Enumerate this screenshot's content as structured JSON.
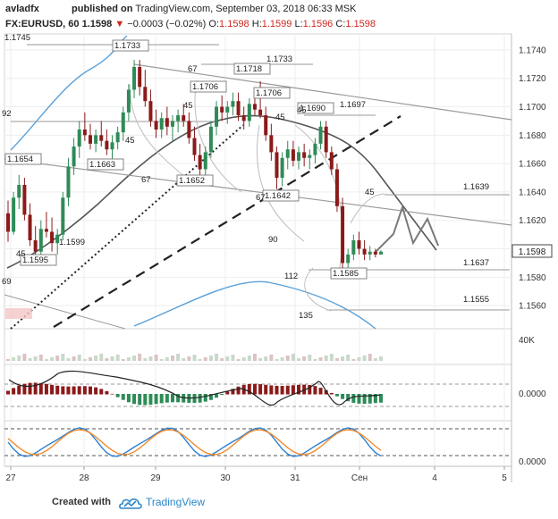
{
  "header": {
    "author": "avladfx",
    "published_label": "published on",
    "site": "TradingView.com,",
    "datetime": "September 03, 2018 06:33 MSK",
    "symbol": "FX:EURUSD, 60",
    "last": "1.1598",
    "change": "−0.0003 (−0.02%)",
    "o_label": "O:",
    "o_val": "1.1598",
    "h_label": "H:",
    "h_val": "1.1599",
    "l_label": "L:",
    "l_val": "1.1596",
    "c_label": "C:",
    "c_val": "1.1598"
  },
  "footer": {
    "created_with": "Created with",
    "brand": "TradingView"
  },
  "colors": {
    "up": "#2e8b57",
    "down": "#8b1a1a",
    "axis_text": "#333333",
    "grid": "#eeeeee",
    "last_price_box": "#ffffff",
    "stoch_blue": "#2a7fd4",
    "stoch_orange": "#f28b2c",
    "bb_blue": "#5aa0d8",
    "ma_dark": "#555555",
    "trend_gray": "#9a9a9a"
  },
  "chart_data": [
    {
      "id": "price",
      "type": "candlestick",
      "x_labels": [
        "27",
        "28",
        "29",
        "30",
        "31",
        "Сен",
        "4",
        "5"
      ],
      "y_ticks": [
        1.156,
        1.158,
        1.16,
        1.162,
        1.164,
        1.166,
        1.168,
        1.17,
        1.172,
        1.174
      ],
      "y_range": [
        1.1545,
        1.175
      ],
      "last_price": 1.1598,
      "grid": true,
      "candles": [
        [
          1.1625,
          1.1634,
          1.1605,
          1.1612
        ],
        [
          1.1612,
          1.164,
          1.161,
          1.1636
        ],
        [
          1.1636,
          1.1652,
          1.1628,
          1.1645
        ],
        [
          1.1645,
          1.165,
          1.162,
          1.1624
        ],
        [
          1.1624,
          1.1632,
          1.1602,
          1.1606
        ],
        [
          1.1606,
          1.1616,
          1.1594,
          1.1598
        ],
        [
          1.1598,
          1.162,
          1.1596,
          1.1614
        ],
        [
          1.1614,
          1.1626,
          1.1608,
          1.1612
        ],
        [
          1.1612,
          1.1622,
          1.1598,
          1.1604
        ],
        [
          1.1604,
          1.1614,
          1.1596,
          1.161
        ],
        [
          1.161,
          1.164,
          1.1606,
          1.1636
        ],
        [
          1.1636,
          1.1664,
          1.163,
          1.1658
        ],
        [
          1.1658,
          1.1678,
          1.1652,
          1.1672
        ],
        [
          1.1672,
          1.169,
          1.1664,
          1.1684
        ],
        [
          1.1684,
          1.1696,
          1.1676,
          1.168
        ],
        [
          1.168,
          1.1688,
          1.167,
          1.1674
        ],
        [
          1.1674,
          1.1684,
          1.1668,
          1.168
        ],
        [
          1.168,
          1.169,
          1.1672,
          1.1676
        ],
        [
          1.1676,
          1.1684,
          1.1666,
          1.167
        ],
        [
          1.167,
          1.168,
          1.1662,
          1.1675
        ],
        [
          1.1675,
          1.1686,
          1.167,
          1.1682
        ],
        [
          1.1682,
          1.17,
          1.1676,
          1.1696
        ],
        [
          1.1696,
          1.1716,
          1.169,
          1.1712
        ],
        [
          1.1712,
          1.1733,
          1.1706,
          1.1728
        ],
        [
          1.1728,
          1.1733,
          1.1708,
          1.1714
        ],
        [
          1.1714,
          1.1726,
          1.17,
          1.1704
        ],
        [
          1.1704,
          1.1712,
          1.1686,
          1.169
        ],
        [
          1.169,
          1.1698,
          1.1678,
          1.1684
        ],
        [
          1.1684,
          1.1696,
          1.1678,
          1.1692
        ],
        [
          1.1692,
          1.17,
          1.168,
          1.1686
        ],
        [
          1.1686,
          1.1694,
          1.1676,
          1.169
        ],
        [
          1.169,
          1.1698,
          1.1682,
          1.1694
        ],
        [
          1.1694,
          1.1702,
          1.1686,
          1.169
        ],
        [
          1.169,
          1.1696,
          1.1674,
          1.1678
        ],
        [
          1.1678,
          1.1686,
          1.1662,
          1.1666
        ],
        [
          1.1666,
          1.1674,
          1.1652,
          1.1656
        ],
        [
          1.1656,
          1.1672,
          1.1652,
          1.1668
        ],
        [
          1.1668,
          1.169,
          1.1664,
          1.1686
        ],
        [
          1.1686,
          1.1704,
          1.168,
          1.17
        ],
        [
          1.17,
          1.1708,
          1.169,
          1.1696
        ],
        [
          1.1696,
          1.1704,
          1.1688,
          1.17
        ],
        [
          1.17,
          1.171,
          1.1694,
          1.1704
        ],
        [
          1.1704,
          1.171,
          1.169,
          1.1694
        ],
        [
          1.1694,
          1.17,
          1.1684,
          1.169
        ],
        [
          1.169,
          1.1706,
          1.1686,
          1.1702
        ],
        [
          1.1702,
          1.1712,
          1.1694,
          1.1698
        ],
        [
          1.1698,
          1.1718,
          1.1692,
          1.1694
        ],
        [
          1.1694,
          1.17,
          1.1676,
          1.168
        ],
        [
          1.168,
          1.1688,
          1.1662,
          1.1668
        ],
        [
          1.1668,
          1.1672,
          1.1642,
          1.165
        ],
        [
          1.165,
          1.1668,
          1.1644,
          1.1664
        ],
        [
          1.1664,
          1.1676,
          1.1656,
          1.167
        ],
        [
          1.167,
          1.1676,
          1.1658,
          1.1662
        ],
        [
          1.1662,
          1.1672,
          1.1656,
          1.1668
        ],
        [
          1.1668,
          1.1674,
          1.1658,
          1.1664
        ],
        [
          1.1664,
          1.167,
          1.1656,
          1.1666
        ],
        [
          1.1666,
          1.1678,
          1.166,
          1.1674
        ],
        [
          1.1674,
          1.169,
          1.167,
          1.1686
        ],
        [
          1.1686,
          1.169,
          1.1664,
          1.1668
        ],
        [
          1.1668,
          1.1672,
          1.1652,
          1.1656
        ],
        [
          1.1656,
          1.166,
          1.1626,
          1.163
        ],
        [
          1.163,
          1.1636,
          1.1585,
          1.159
        ],
        [
          1.159,
          1.16,
          1.1585,
          1.1596
        ],
        [
          1.1596,
          1.161,
          1.1592,
          1.1606
        ],
        [
          1.1606,
          1.1612,
          1.1596,
          1.16
        ],
        [
          1.16,
          1.1606,
          1.1592,
          1.1596
        ],
        [
          1.1596,
          1.1602,
          1.1592,
          1.1598
        ],
        [
          1.1598,
          1.16,
          1.1594,
          1.1596
        ],
        [
          1.1596,
          1.1599,
          1.1596,
          1.1598
        ]
      ],
      "price_labels": [
        {
          "t": "1.1745",
          "v": 1.1745
        },
        {
          "t": "1.1733",
          "v": 1.1733
        },
        {
          "t": "1.1733",
          "v": 1.1733
        },
        {
          "t": "1.1718",
          "v": 1.1718
        },
        {
          "t": "1.1706",
          "v": 1.1706
        },
        {
          "t": "1.1706",
          "v": 1.1706
        },
        {
          "t": "1.1697",
          "v": 1.1697
        },
        {
          "t": "1.1690",
          "v": 1.169
        },
        {
          "t": "1.1663",
          "v": 1.1663
        },
        {
          "t": "1.1654",
          "v": 1.1654
        },
        {
          "t": "1.1652",
          "v": 1.1652
        },
        {
          "t": "1.1642",
          "v": 1.1642
        },
        {
          "t": "1.1639",
          "v": 1.1639
        },
        {
          "t": "1.1637",
          "v": 1.1637
        },
        {
          "t": "1.1599",
          "v": 1.1599
        },
        {
          "t": "1.1595",
          "v": 1.1595
        },
        {
          "t": "1.1585",
          "v": 1.1585
        },
        {
          "t": "1.1555",
          "v": 1.1555
        },
        {
          "t": "92",
          "v": null
        },
        {
          "t": "69",
          "v": null
        }
      ],
      "cycle_labels": [
        "67",
        "45",
        "45",
        "67",
        "45",
        "45",
        "67",
        "45",
        "90",
        "112",
        "135",
        "45"
      ]
    },
    {
      "id": "volume",
      "type": "bar",
      "y_tick_label": "40K"
    },
    {
      "id": "macd",
      "type": "bar",
      "y_tick_label": "0.0000"
    },
    {
      "id": "stochastic",
      "type": "line",
      "y_tick_label": "0.0000",
      "series": [
        {
          "color": "#2a7fd4"
        },
        {
          "color": "#f28b2c"
        }
      ]
    }
  ]
}
